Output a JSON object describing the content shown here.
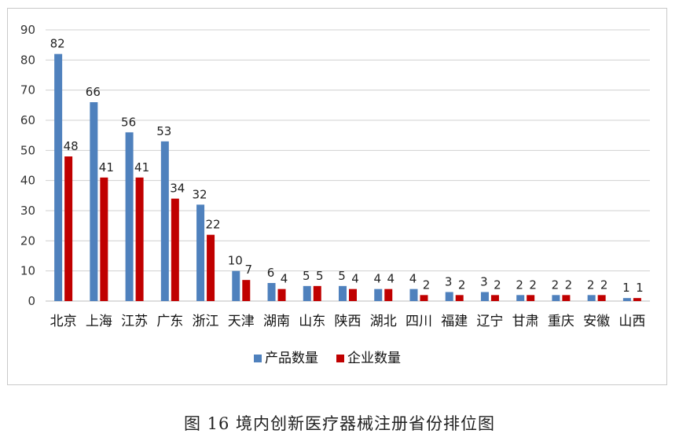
{
  "caption": "图 16 境内创新医疗器械注册省份排位图",
  "colors": {
    "series_a": "#4f81bd",
    "series_b": "#c00000",
    "grid": "#d0d0d0"
  },
  "chart_data": {
    "type": "bar",
    "categories": [
      "北京",
      "上海",
      "江苏",
      "广东",
      "浙江",
      "天津",
      "湖南",
      "山东",
      "陕西",
      "湖北",
      "四川",
      "福建",
      "辽宁",
      "甘肃",
      "重庆",
      "安徽",
      "山西"
    ],
    "series": [
      {
        "name": "产品数量",
        "values": [
          82,
          66,
          56,
          53,
          32,
          10,
          6,
          5,
          5,
          4,
          4,
          3,
          3,
          2,
          2,
          2,
          1
        ]
      },
      {
        "name": "企业数量",
        "values": [
          48,
          41,
          41,
          34,
          22,
          7,
          4,
          5,
          4,
          4,
          2,
          2,
          2,
          2,
          2,
          2,
          1
        ]
      }
    ],
    "ylim": [
      0,
      90
    ],
    "yticks": [
      0,
      10,
      20,
      30,
      40,
      50,
      60,
      70,
      80,
      90
    ],
    "grid": true,
    "legend_position": "bottom"
  }
}
